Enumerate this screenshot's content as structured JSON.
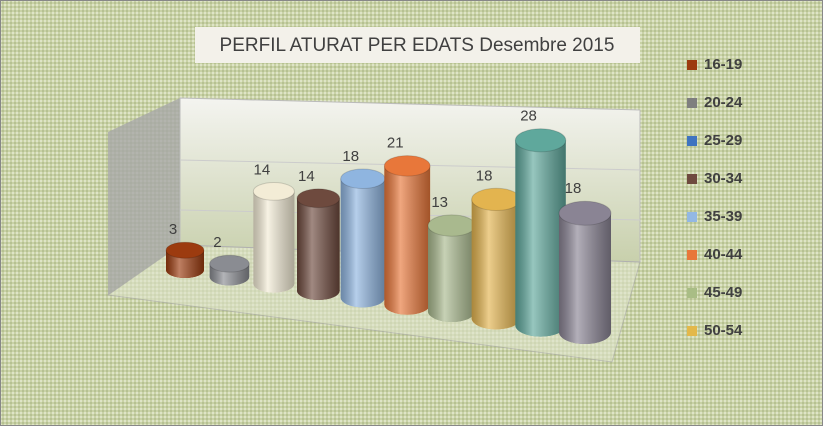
{
  "chart_data": {
    "type": "bar",
    "title": "PERFIL ATURAT PER EDATS Desembre 2015",
    "categories": [
      "16-19",
      "20-24",
      "25-29",
      "30-34",
      "35-39",
      "40-44",
      "45-49",
      "50-54",
      null,
      null
    ],
    "values": [
      3,
      2,
      14,
      14,
      18,
      21,
      13,
      18,
      28,
      18
    ],
    "colors": [
      "#9c3b0f",
      "#8a8c92",
      "#f3ecd6",
      "#6e4a3e",
      "#8fb5e0",
      "#e8773a",
      "#a9b98e",
      "#e3b44f",
      "#5fa89c",
      "#8a8494"
    ],
    "legend_colors": [
      "#9c3b0f",
      "#7f7f7f",
      "#3f74c0",
      "#6e4a3e",
      "#93b8e3",
      "#e8773a",
      "#a9bd85",
      "#e3b84a"
    ]
  }
}
